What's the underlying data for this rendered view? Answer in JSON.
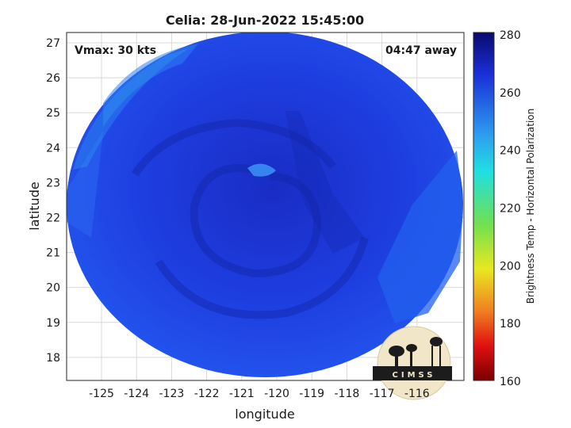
{
  "title": "Celia: 28-Jun-2022 15:45:00",
  "vmax_label": "Vmax: 30 kts",
  "away_label": "04:47 away",
  "xlabel": "longitude",
  "ylabel": "latitude",
  "colorbar_label": "Brightness Temp - Horizontal Polarization",
  "logo_text": "CIMSS",
  "x_ticks": [
    "-125",
    "-124",
    "-123",
    "-122",
    "-121",
    "-120",
    "-119",
    "-118",
    "-117",
    "-116"
  ],
  "y_ticks": [
    "27",
    "26",
    "25",
    "24",
    "23",
    "22",
    "21",
    "20",
    "19",
    "18"
  ],
  "colorbar_ticks": [
    "280",
    "260",
    "240",
    "220",
    "200",
    "180",
    "160"
  ],
  "colors": {
    "swath_main": "#1e3ee0",
    "swath_dark": "#1428b0",
    "swath_light": "#2f8cf0",
    "grid": "#d9d9d9",
    "colorbar_stops": [
      "#0a0a6e",
      "#1a2fd8",
      "#2ea0f0",
      "#1fe0e0",
      "#60e060",
      "#e8e820",
      "#f08020",
      "#e01010",
      "#7a0000"
    ]
  }
}
